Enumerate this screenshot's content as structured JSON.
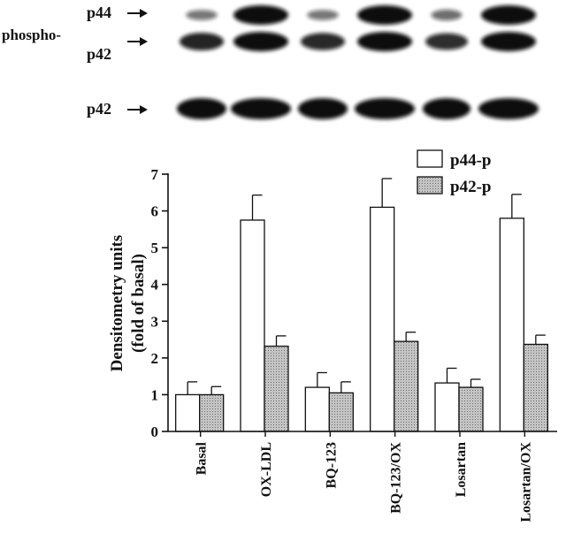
{
  "blot": {
    "phospho_label": "phospho-",
    "p44_label": "p44",
    "p42_label": "p42",
    "total_label": "p42",
    "lanes": 6,
    "phospho_p44_intensity": [
      0.35,
      1.0,
      0.35,
      1.0,
      0.4,
      1.0
    ],
    "phospho_p42_intensity": [
      0.8,
      1.0,
      0.75,
      1.0,
      0.7,
      1.0
    ],
    "total_p42_intensity": [
      1.0,
      1.0,
      1.0,
      1.0,
      1.0,
      1.0
    ]
  },
  "chart_data": {
    "type": "bar",
    "categories": [
      "Basal",
      "OX-LDL",
      "BQ-123",
      "BQ-123/OX",
      "Losartan",
      "Losartan/OX"
    ],
    "series": [
      {
        "name": "p44-p",
        "values": [
          1.0,
          5.75,
          1.2,
          6.1,
          1.32,
          5.8
        ],
        "errors": [
          0.35,
          0.68,
          0.4,
          0.78,
          0.4,
          0.65
        ],
        "color": "#ffffff"
      },
      {
        "name": "p42-p",
        "values": [
          1.0,
          2.32,
          1.05,
          2.45,
          1.2,
          2.37
        ],
        "errors": [
          0.22,
          0.28,
          0.3,
          0.25,
          0.22,
          0.25
        ],
        "color": "#b8b8b8"
      }
    ],
    "ylabel_line1": "Densitometry units",
    "ylabel_line2": "(fold of basal)",
    "ylim": [
      0,
      7
    ],
    "yticks": [
      "0",
      "1",
      "2",
      "3",
      "4",
      "5",
      "6",
      "7"
    ],
    "legend_position": "top-right",
    "grid": false
  }
}
